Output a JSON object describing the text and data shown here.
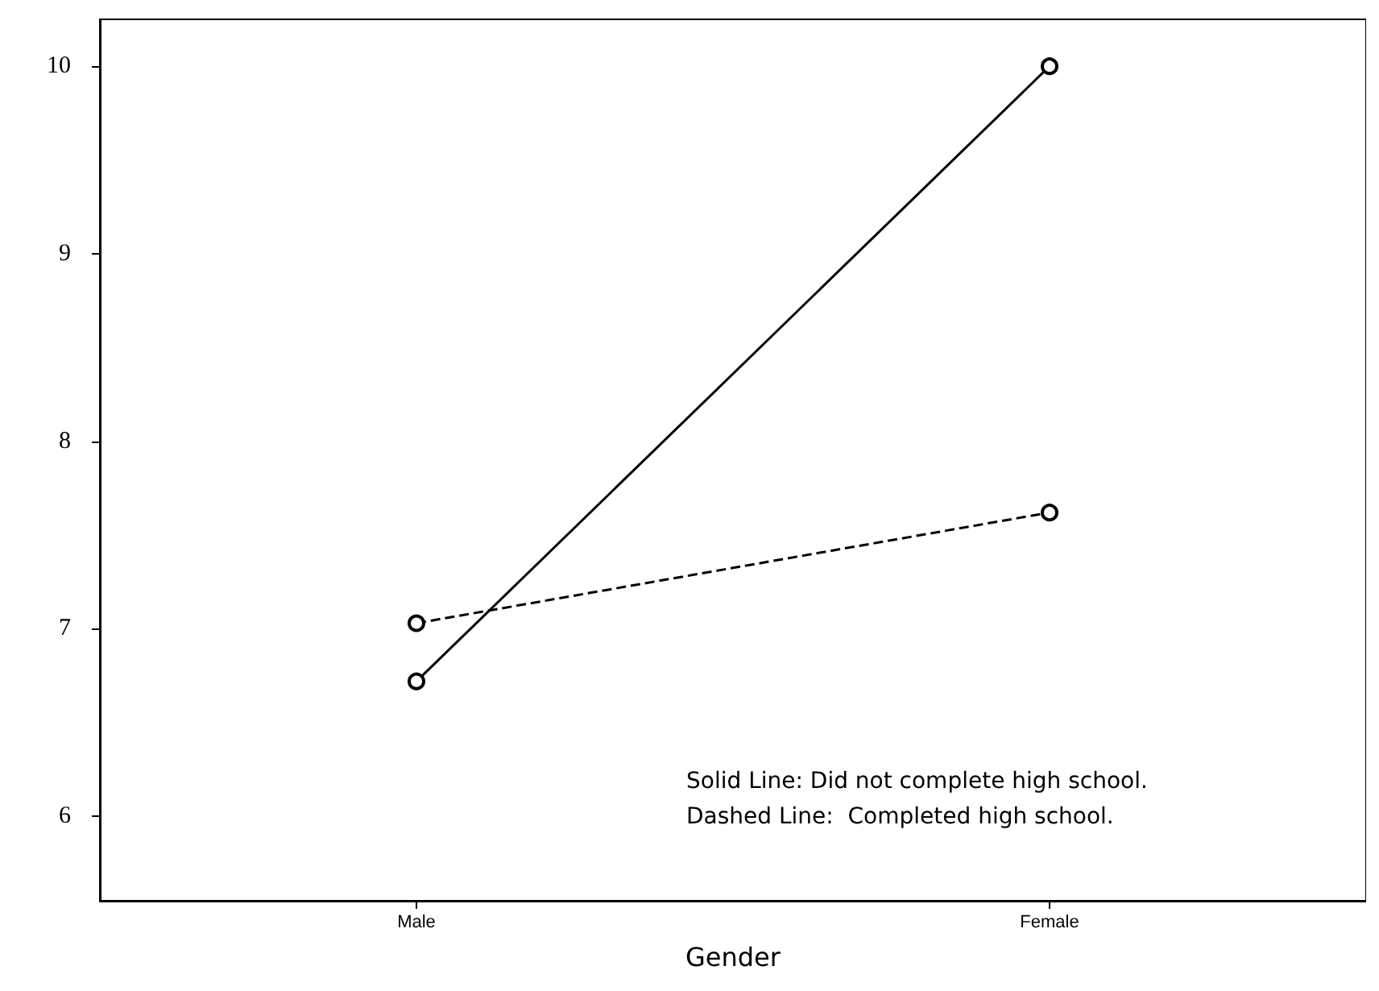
{
  "chart_data": {
    "type": "line",
    "xlabel": "Gender",
    "categories": [
      "Male",
      "Female"
    ],
    "series": [
      {
        "color": "#000000",
        "values": [
          6.72,
          10
        ],
        "line_style": "solid"
      },
      {
        "color": "#000000",
        "values": [
          7.03,
          7.62
        ],
        "line_style": "dashed"
      }
    ],
    "ylim": [
      5.55,
      10.25
    ],
    "yticks": [
      6,
      7,
      8,
      9,
      10
    ],
    "marker": "circle",
    "grid": false,
    "annotations": [
      "Solid Line: Did not complete high school.",
      "Dashed Line:  Completed high school."
    ]
  }
}
